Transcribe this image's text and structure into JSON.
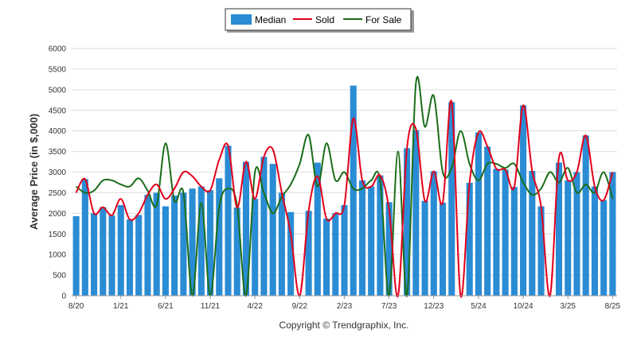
{
  "chart_data": {
    "type": "bar",
    "ylabel": "Average Price (in $,000)",
    "xlabel": "",
    "ylim": [
      0,
      6000
    ],
    "yticks": [
      0,
      500,
      1000,
      1500,
      2000,
      2500,
      3000,
      3500,
      4000,
      4500,
      5000,
      5500,
      6000
    ],
    "xtick_labels": [
      "8/20",
      "1/21",
      "6/21",
      "11/21",
      "4/22",
      "9/22",
      "2/23",
      "7/23",
      "12/23",
      "5/24",
      "10/24",
      "3/25",
      "8/25"
    ],
    "grid": "horizontal",
    "legend_position": "top-center",
    "credit": "Copyright © Trendgraphix, Inc.",
    "series": [
      {
        "name": "Median",
        "type": "bar",
        "color": "#2a8cd4",
        "values": [
          1930,
          2830,
          2000,
          2150,
          1950,
          2200,
          1850,
          1960,
          2450,
          2500,
          2170,
          2430,
          2500,
          2600,
          2650,
          2560,
          2850,
          3640,
          2140,
          3250,
          2350,
          3370,
          3200,
          2500,
          2030,
          0,
          2060,
          3230,
          1870,
          2000,
          2200,
          5100,
          2800,
          2650,
          2920,
          2270,
          0,
          3580,
          4020,
          2300,
          3020,
          2260,
          4700,
          0,
          2740,
          3960,
          3620,
          3080,
          3060,
          2640,
          4620,
          3030,
          2170,
          0,
          3230,
          2800,
          3000,
          3890,
          2650,
          2320,
          3000
        ]
      },
      {
        "name": "Sold",
        "type": "line",
        "color": "#e3001b",
        "values": [
          2500,
          2830,
          2000,
          2150,
          1950,
          2350,
          1850,
          2000,
          2450,
          2700,
          2350,
          2600,
          3000,
          2900,
          2650,
          2560,
          3300,
          3640,
          2140,
          3250,
          2350,
          3370,
          3550,
          2500,
          1500,
          0,
          2060,
          2900,
          1870,
          2000,
          2200,
          4300,
          2800,
          2650,
          2920,
          2100,
          0,
          3580,
          4050,
          2300,
          3020,
          2260,
          4700,
          0,
          2740,
          3960,
          3620,
          3080,
          3060,
          2640,
          4620,
          3030,
          2170,
          0,
          3350,
          2800,
          3000,
          3890,
          2650,
          2320,
          3000
        ]
      },
      {
        "name": "For Sale",
        "type": "line",
        "color": "#1a6e1a",
        "values": [
          2650,
          2500,
          2550,
          2800,
          2800,
          2700,
          2650,
          2850,
          2550,
          2200,
          3700,
          2300,
          2500,
          0,
          2250,
          0,
          2150,
          2600,
          2200,
          0,
          3000,
          2500,
          2000,
          2400,
          2700,
          3200,
          3900,
          2650,
          3700,
          2800,
          3000,
          2600,
          2600,
          2800,
          2800,
          0,
          3500,
          0,
          5150,
          4100,
          4850,
          3000,
          3100,
          4000,
          3200,
          2800,
          3200,
          3200,
          3100,
          3200,
          2750,
          2450,
          2600,
          3000,
          2750,
          3100,
          2500,
          2700,
          2500,
          3000,
          2350
        ]
      }
    ]
  }
}
